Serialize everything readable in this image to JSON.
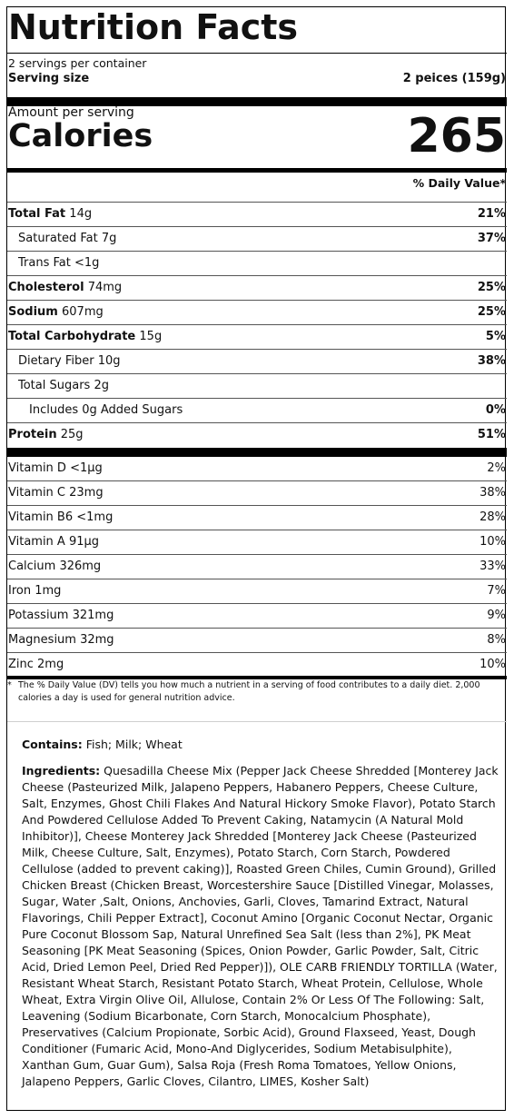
{
  "title": "Nutrition Facts",
  "servings_per_container": "2 servings per container",
  "serving_size_label": "Serving size",
  "serving_size_value": "2 peices (159g)",
  "amount_per_serving": "Amount per serving",
  "calories_label": "Calories",
  "calories_value": "265",
  "daily_value_header": "% Daily Value*",
  "nutrients": [
    {
      "name": "Total Fat",
      "amount": "14g",
      "dv": "21%"
    },
    {
      "name": "Saturated Fat",
      "amount": "7g",
      "dv": "37%"
    },
    {
      "name": "Trans Fat",
      "amount": "<1g",
      "dv": ""
    },
    {
      "name": "Cholesterol",
      "amount": "74mg",
      "dv": "25%"
    },
    {
      "name": "Sodium",
      "amount": "607mg",
      "dv": "25%"
    },
    {
      "name": "Total Carbohydrate",
      "amount": "15g",
      "dv": "5%"
    },
    {
      "name": "Dietary Fiber",
      "amount": "10g",
      "dv": "38%"
    },
    {
      "name": "Total Sugars",
      "amount": "2g",
      "dv": ""
    },
    {
      "name": "Includes 0g Added Sugars",
      "amount": "",
      "dv": "0%"
    },
    {
      "name": "Protein",
      "amount": "25g",
      "dv": "51%"
    }
  ],
  "vitamins": [
    {
      "text": "Vitamin D <1µg",
      "dv": "2%"
    },
    {
      "text": "Vitamin C 23mg",
      "dv": "38%"
    },
    {
      "text": "Vitamin B6 <1mg",
      "dv": "28%"
    },
    {
      "text": "Vitamin A 91µg",
      "dv": "10%"
    },
    {
      "text": "Calcium 326mg",
      "dv": "33%"
    },
    {
      "text": "Iron 1mg",
      "dv": "7%"
    },
    {
      "text": "Potassium 321mg",
      "dv": "9%"
    },
    {
      "text": "Magnesium 32mg",
      "dv": "8%"
    },
    {
      "text": "Zinc 2mg",
      "dv": "10%"
    }
  ],
  "footnote_star": "*",
  "footnote": "The % Daily Value (DV) tells you how much a nutrient in a serving of food contributes to a daily diet. 2,000 calories a day is used for general nutrition advice.",
  "contains_label": "Contains:",
  "contains_value": "Fish; Milk; Wheat",
  "ingredients_label": "Ingredients:",
  "ingredients_value": "Quesadilla Cheese Mix (Pepper Jack Cheese Shredded [Monterey Jack Cheese (Pasteurized Milk, Jalapeno Peppers, Habanero Peppers, Cheese Culture, Salt, Enzymes, Ghost Chili Flakes And Natural Hickory Smoke Flavor), Potato Starch And Powdered Cellulose Added To Prevent Caking, Natamycin (A Natural Mold Inhibitor)], Cheese Monterey Jack Shredded [Monterey Jack Cheese (Pasteurized Milk, Cheese Culture, Salt, Enzymes), Potato Starch, Corn Starch, Powdered Cellulose (added to prevent caking)], Roasted Green Chiles, Cumin Ground), Grilled Chicken Breast (Chicken Breast, Worcestershire Sauce [Distilled Vinegar, Molasses, Sugar, Water ,Salt, Onions, Anchovies, Garli, Cloves, Tamarind Extract, Natural Flavorings, Chili Pepper Extract], Coconut Amino [Organic Coconut Nectar, Organic Pure Coconut Blossom Sap, Natural Unrefined Sea Salt (less than 2%], PK Meat Seasoning [PK Meat Seasoning (Spices, Onion Powder, Garlic Powder, Salt, Citric Acid, Dried Lemon Peel, Dried Red Pepper)]), OLE CARB FRIENDLY TORTILLA (Water, Resistant Wheat Starch, Resistant Potato Starch, Wheat Protein, Cellulose, Whole Wheat, Extra Virgin Olive Oil, Allulose, Contain 2% Or Less Of The Following: Salt, Leavening (Sodium Bicarbonate, Corn Starch, Monocalcium Phosphate), Preservatives (Calcium Propionate, Sorbic Acid), Ground Flaxseed, Yeast, Dough Conditioner (Fumaric Acid, Mono-And Diglycerides, Sodium Metabisulphite), Xanthan Gum, Guar Gum), Salsa Roja (Fresh Roma Tomatoes, Yellow Onions, Jalapeno Peppers, Garlic Cloves, Cilantro, LIMES, Kosher Salt)"
}
